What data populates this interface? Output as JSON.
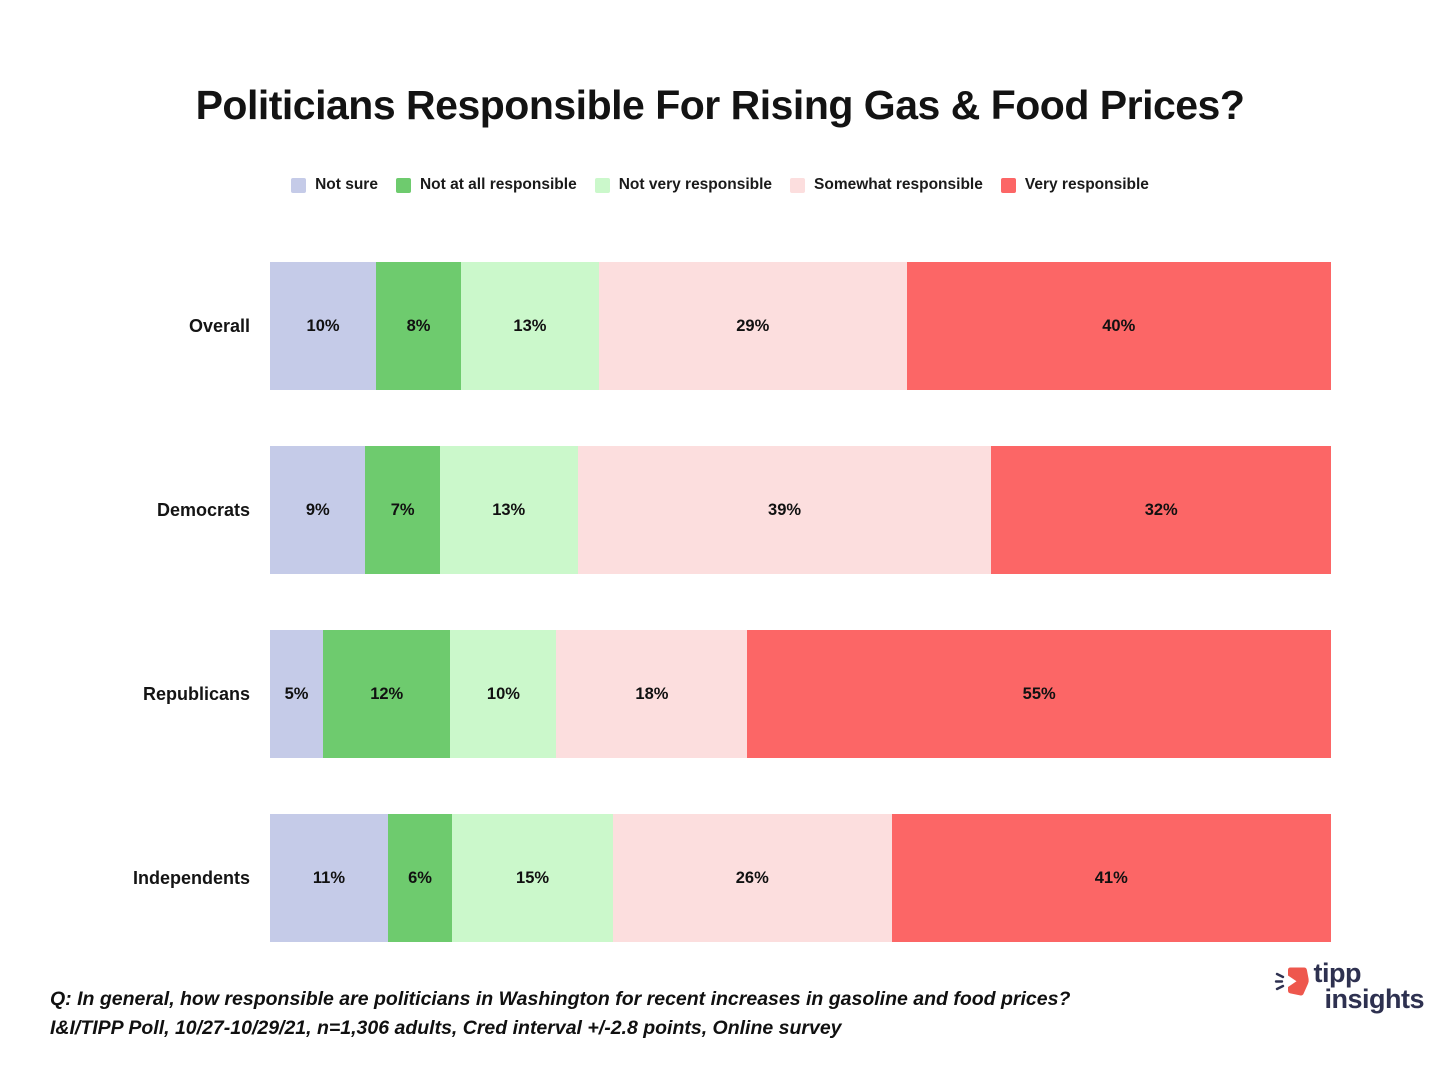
{
  "title": "Politicians Responsible For Rising Gas & Food Prices?",
  "legend_items": [
    {
      "label": "Not sure",
      "color": "#c5cbe8"
    },
    {
      "label": "Not at all responsible",
      "color": "#6ecb6e"
    },
    {
      "label": "Not very responsible",
      "color": "#cbf8cb"
    },
    {
      "label": "Somewhat responsible",
      "color": "#fcdede"
    },
    {
      "label": "Very responsible",
      "color": "#fc6666"
    }
  ],
  "chart_data": {
    "type": "bar",
    "orientation": "horizontal",
    "stacked": true,
    "title": "Politicians Responsible For Rising Gas & Food Prices?",
    "categories": [
      "Overall",
      "Democrats",
      "Republicans",
      "Independents"
    ],
    "series": [
      {
        "name": "Not sure",
        "color": "#c5cbe8",
        "values": [
          10,
          9,
          5,
          11
        ]
      },
      {
        "name": "Not at all responsible",
        "color": "#6ecb6e",
        "values": [
          8,
          7,
          12,
          6
        ]
      },
      {
        "name": "Not very responsible",
        "color": "#cbf8cb",
        "values": [
          13,
          13,
          10,
          15
        ]
      },
      {
        "name": "Somewhat responsible",
        "color": "#fcdede",
        "values": [
          29,
          39,
          18,
          26
        ]
      },
      {
        "name": "Very responsible",
        "color": "#fc6666",
        "values": [
          40,
          32,
          55,
          41
        ]
      }
    ],
    "value_suffix": "%",
    "legend_position": "top",
    "grid": false,
    "axis_labels": false
  },
  "footer": {
    "question": "Q:  In general, how responsible are politicians in Washington for recent increases in gasoline and food prices?",
    "source": "I&I/TIPP Poll, 10/27-10/29/21, n=1,306 adults, Cred interval +/-2.8 points, Online survey"
  },
  "logo": {
    "line1": "tipp",
    "line2": "insights",
    "text_color": "#2e3150",
    "icon_color": "#ee574d"
  }
}
